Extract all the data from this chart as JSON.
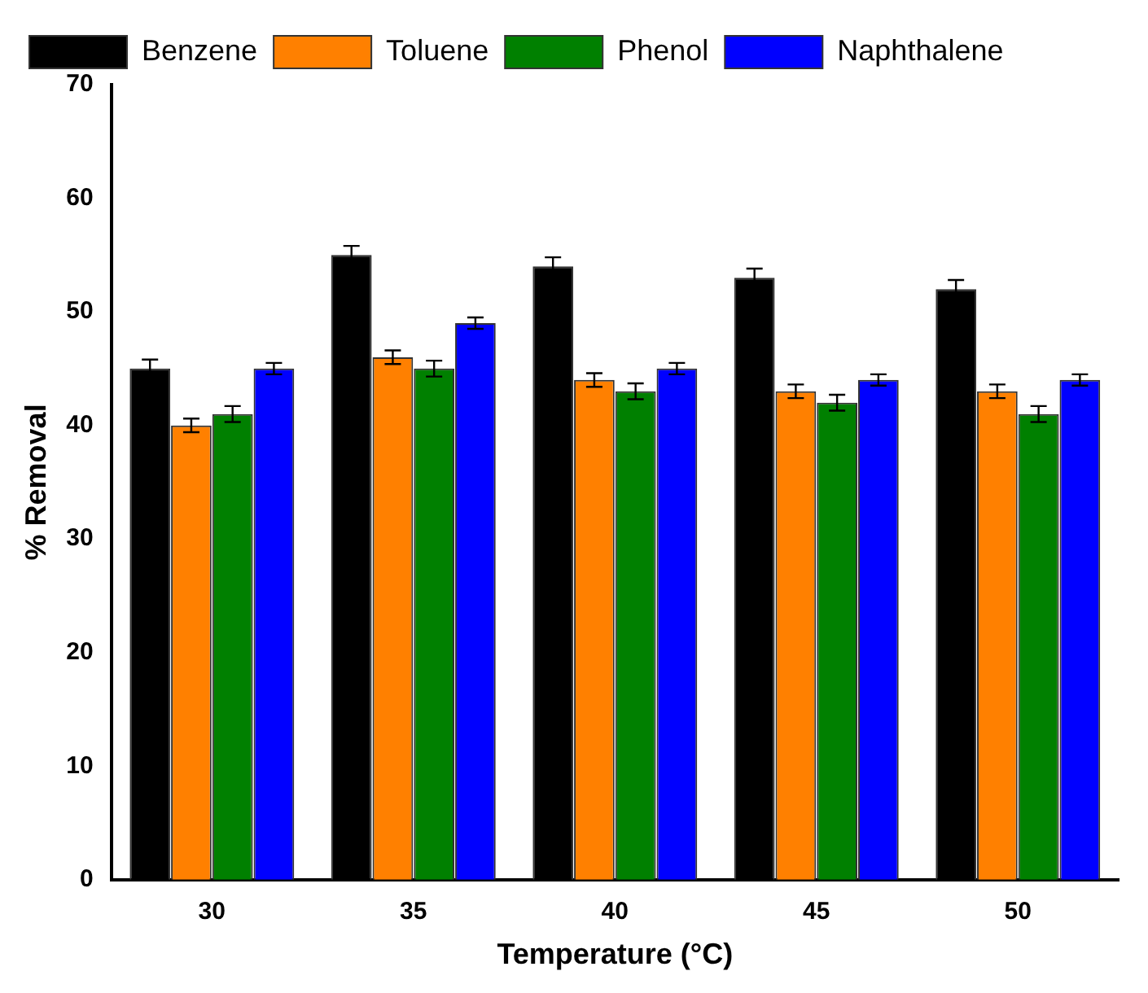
{
  "chart_data": {
    "type": "bar",
    "xlabel": "Temperature (°C)",
    "ylabel": "% Removal",
    "categories": [
      "30",
      "35",
      "40",
      "45",
      "50"
    ],
    "series": [
      {
        "name": "Benzene",
        "color": "#000000",
        "values": [
          45,
          55,
          54,
          53,
          52
        ],
        "errors": [
          0.8,
          0.8,
          0.8,
          0.8,
          0.8
        ]
      },
      {
        "name": "Toluene",
        "color": "#ff8000",
        "values": [
          40,
          46,
          44,
          43,
          43
        ],
        "errors": [
          0.6,
          0.6,
          0.6,
          0.6,
          0.6
        ]
      },
      {
        "name": "Phenol",
        "color": "#008000",
        "values": [
          41,
          45,
          43,
          42,
          41
        ],
        "errors": [
          0.7,
          0.7,
          0.7,
          0.7,
          0.7
        ]
      },
      {
        "name": "Naphthalene",
        "color": "#0000ff",
        "values": [
          45,
          49,
          45,
          44,
          44
        ],
        "errors": [
          0.5,
          0.5,
          0.5,
          0.5,
          0.5
        ]
      }
    ],
    "ylim": [
      0,
      70
    ],
    "yticks": [
      0,
      10,
      20,
      30,
      40,
      50,
      60,
      70
    ],
    "grid": false,
    "legend": "top left"
  }
}
